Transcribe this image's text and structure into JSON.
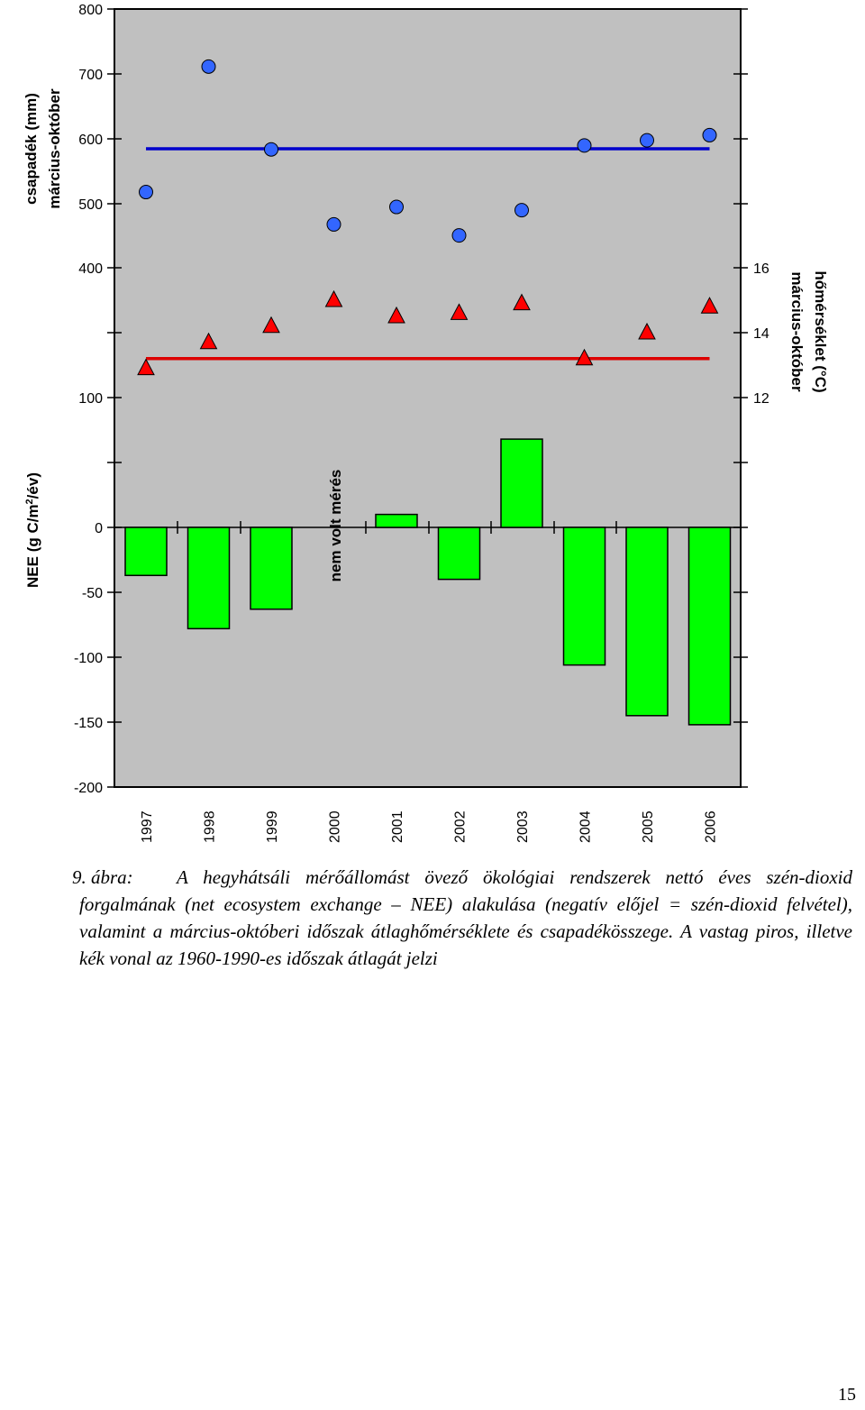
{
  "chart_data": {
    "type": "bar",
    "categories": [
      "1997",
      "1998",
      "1999",
      "2000",
      "2001",
      "2002",
      "2003",
      "2004",
      "2005",
      "2006"
    ],
    "nee": {
      "label_line1": "NEE (g C/m",
      "label_sup": "2",
      "label_line2": "/év)",
      "values": [
        -37,
        -78,
        -63,
        null,
        10,
        -40,
        68,
        -106,
        -145,
        -152
      ],
      "color": "#00ff00",
      "no_measurement_label": "nem volt mérés"
    },
    "precipitation": {
      "label_line1": "csapadék (mm)",
      "label_line2": "március-október",
      "values": [
        517,
        711,
        583,
        467,
        494,
        450,
        489,
        589,
        597,
        605
      ],
      "average": 584,
      "color": "#3366ff",
      "line_color": "#0000cc"
    },
    "temperature": {
      "label_line1": "hőmérséklet (°C)",
      "label_line2": "március-október",
      "values": [
        12.9,
        13.7,
        14.2,
        15.0,
        14.5,
        14.6,
        14.9,
        13.2,
        14.0,
        14.8
      ],
      "average": 13.2,
      "color": "#ff0000",
      "line_color": "#dd0000"
    },
    "left_ticks": [
      "800",
      "700",
      "600",
      "500",
      "400",
      "",
      "100",
      "",
      "0",
      "-50",
      "-100",
      "-150",
      "-200"
    ],
    "right_ticks": [
      "16",
      "14",
      "12"
    ]
  },
  "caption": {
    "prefix": "9. ábra:",
    "text": "A hegyhátsáli mérőállomást övező ökológiai rendszerek nettó éves szén-dioxid forgalmának (net ecosystem exchange – NEE) alakulása (negatív előjel = szén-dioxid felvétel), valamint a március-októberi időszak átlaghőmérséklete és csapadékösszege. A vastag piros, illetve kék vonal az 1960-1990-es időszak átlagát jelzi"
  },
  "page_number": "15"
}
